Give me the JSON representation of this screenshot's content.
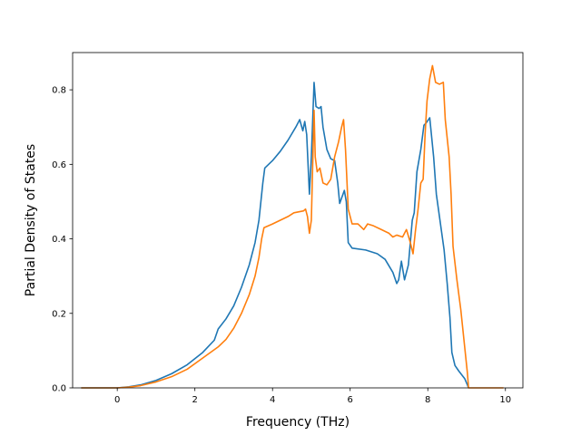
{
  "chart_data": {
    "type": "line",
    "title": "",
    "xlabel": "Frequency (THz)",
    "ylabel": "Partial Density of States",
    "xlim": [
      -1.15,
      10.45
    ],
    "ylim": [
      0,
      0.9
    ],
    "xticks": [
      0,
      2,
      4,
      6,
      8,
      10
    ],
    "yticks": [
      0.0,
      0.2,
      0.4,
      0.6,
      0.8
    ],
    "xtick_labels": [
      "0",
      "2",
      "4",
      "6",
      "8",
      "10"
    ],
    "ytick_labels": [
      "0.0",
      "0.2",
      "0.4",
      "0.6",
      "0.8"
    ],
    "grid": false,
    "legend": "none",
    "series": [
      {
        "color": "#1f77b4",
        "points": [
          [
            -0.93,
            0
          ],
          [
            0,
            0
          ],
          [
            0.3,
            0.003
          ],
          [
            0.6,
            0.008
          ],
          [
            1.0,
            0.02
          ],
          [
            1.4,
            0.038
          ],
          [
            1.8,
            0.062
          ],
          [
            2.2,
            0.095
          ],
          [
            2.5,
            0.128
          ],
          [
            2.6,
            0.158
          ],
          [
            2.8,
            0.185
          ],
          [
            3.0,
            0.22
          ],
          [
            3.2,
            0.27
          ],
          [
            3.4,
            0.33
          ],
          [
            3.55,
            0.39
          ],
          [
            3.65,
            0.45
          ],
          [
            3.75,
            0.55
          ],
          [
            3.8,
            0.59
          ],
          [
            4.0,
            0.61
          ],
          [
            4.2,
            0.635
          ],
          [
            4.4,
            0.665
          ],
          [
            4.6,
            0.7
          ],
          [
            4.7,
            0.72
          ],
          [
            4.78,
            0.69
          ],
          [
            4.83,
            0.715
          ],
          [
            4.88,
            0.68
          ],
          [
            4.95,
            0.52
          ],
          [
            5.0,
            0.62
          ],
          [
            5.07,
            0.82
          ],
          [
            5.12,
            0.755
          ],
          [
            5.2,
            0.75
          ],
          [
            5.25,
            0.755
          ],
          [
            5.3,
            0.7
          ],
          [
            5.4,
            0.64
          ],
          [
            5.5,
            0.615
          ],
          [
            5.6,
            0.61
          ],
          [
            5.68,
            0.55
          ],
          [
            5.73,
            0.495
          ],
          [
            5.85,
            0.53
          ],
          [
            5.9,
            0.5
          ],
          [
            5.95,
            0.39
          ],
          [
            6.05,
            0.375
          ],
          [
            6.4,
            0.37
          ],
          [
            6.7,
            0.36
          ],
          [
            6.9,
            0.345
          ],
          [
            7.1,
            0.31
          ],
          [
            7.2,
            0.28
          ],
          [
            7.25,
            0.29
          ],
          [
            7.32,
            0.34
          ],
          [
            7.4,
            0.29
          ],
          [
            7.5,
            0.33
          ],
          [
            7.6,
            0.45
          ],
          [
            7.65,
            0.47
          ],
          [
            7.72,
            0.58
          ],
          [
            7.82,
            0.64
          ],
          [
            7.9,
            0.705
          ],
          [
            7.95,
            0.71
          ],
          [
            8.05,
            0.725
          ],
          [
            8.15,
            0.62
          ],
          [
            8.22,
            0.52
          ],
          [
            8.3,
            0.46
          ],
          [
            8.42,
            0.37
          ],
          [
            8.5,
            0.28
          ],
          [
            8.57,
            0.19
          ],
          [
            8.62,
            0.095
          ],
          [
            8.7,
            0.06
          ],
          [
            8.8,
            0.045
          ],
          [
            8.95,
            0.025
          ],
          [
            9.02,
            0.008
          ],
          [
            9.05,
            0
          ]
        ]
      },
      {
        "color": "#ff7f0e",
        "points": [
          [
            -0.93,
            0
          ],
          [
            0,
            0
          ],
          [
            0.3,
            0.002
          ],
          [
            0.6,
            0.006
          ],
          [
            1.0,
            0.016
          ],
          [
            1.4,
            0.03
          ],
          [
            1.8,
            0.05
          ],
          [
            2.2,
            0.08
          ],
          [
            2.6,
            0.11
          ],
          [
            2.8,
            0.13
          ],
          [
            3.0,
            0.16
          ],
          [
            3.2,
            0.2
          ],
          [
            3.4,
            0.25
          ],
          [
            3.55,
            0.3
          ],
          [
            3.65,
            0.35
          ],
          [
            3.72,
            0.4
          ],
          [
            3.78,
            0.43
          ],
          [
            4.0,
            0.44
          ],
          [
            4.2,
            0.45
          ],
          [
            4.4,
            0.46
          ],
          [
            4.55,
            0.47
          ],
          [
            4.8,
            0.475
          ],
          [
            4.85,
            0.48
          ],
          [
            4.9,
            0.46
          ],
          [
            4.95,
            0.415
          ],
          [
            5.0,
            0.45
          ],
          [
            5.03,
            0.58
          ],
          [
            5.07,
            0.745
          ],
          [
            5.1,
            0.62
          ],
          [
            5.15,
            0.58
          ],
          [
            5.22,
            0.59
          ],
          [
            5.3,
            0.55
          ],
          [
            5.4,
            0.545
          ],
          [
            5.5,
            0.56
          ],
          [
            5.6,
            0.62
          ],
          [
            5.7,
            0.66
          ],
          [
            5.78,
            0.7
          ],
          [
            5.83,
            0.72
          ],
          [
            5.88,
            0.64
          ],
          [
            5.95,
            0.48
          ],
          [
            6.05,
            0.44
          ],
          [
            6.2,
            0.44
          ],
          [
            6.35,
            0.425
          ],
          [
            6.45,
            0.44
          ],
          [
            6.6,
            0.435
          ],
          [
            6.8,
            0.425
          ],
          [
            7.0,
            0.415
          ],
          [
            7.1,
            0.405
          ],
          [
            7.2,
            0.41
          ],
          [
            7.35,
            0.405
          ],
          [
            7.45,
            0.425
          ],
          [
            7.55,
            0.39
          ],
          [
            7.62,
            0.36
          ],
          [
            7.68,
            0.42
          ],
          [
            7.75,
            0.48
          ],
          [
            7.82,
            0.55
          ],
          [
            7.88,
            0.56
          ],
          [
            7.93,
            0.68
          ],
          [
            7.98,
            0.77
          ],
          [
            8.05,
            0.83
          ],
          [
            8.12,
            0.865
          ],
          [
            8.2,
            0.82
          ],
          [
            8.3,
            0.815
          ],
          [
            8.4,
            0.82
          ],
          [
            8.45,
            0.72
          ],
          [
            8.55,
            0.62
          ],
          [
            8.6,
            0.52
          ],
          [
            8.65,
            0.38
          ],
          [
            8.75,
            0.29
          ],
          [
            8.85,
            0.21
          ],
          [
            8.95,
            0.11
          ],
          [
            9.02,
            0.04
          ],
          [
            9.05,
            0
          ],
          [
            9.95,
            0
          ]
        ]
      }
    ]
  }
}
